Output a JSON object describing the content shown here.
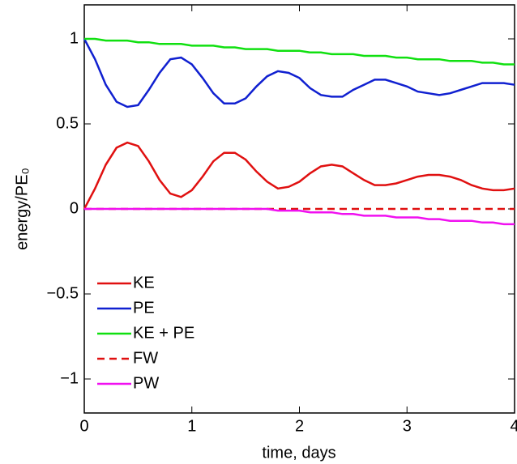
{
  "chart_data": {
    "type": "line",
    "xlabel": "time, days",
    "ylabel": "energy/PE₀",
    "x": [
      0,
      0.1,
      0.2,
      0.3,
      0.4,
      0.5,
      0.6,
      0.7,
      0.8,
      0.9,
      1.0,
      1.1,
      1.2,
      1.3,
      1.4,
      1.5,
      1.6,
      1.7,
      1.8,
      1.9,
      2.0,
      2.1,
      2.2,
      2.3,
      2.4,
      2.5,
      2.6,
      2.7,
      2.8,
      2.9,
      3.0,
      3.1,
      3.2,
      3.3,
      3.4,
      3.5,
      3.6,
      3.7,
      3.8,
      3.9,
      4.0
    ],
    "series": [
      {
        "name": "KE",
        "color": "#e01010",
        "linestyle": "solid",
        "values": [
          0,
          0.12,
          0.26,
          0.36,
          0.39,
          0.37,
          0.28,
          0.17,
          0.09,
          0.07,
          0.11,
          0.19,
          0.28,
          0.33,
          0.33,
          0.29,
          0.22,
          0.16,
          0.12,
          0.13,
          0.16,
          0.21,
          0.25,
          0.26,
          0.25,
          0.21,
          0.17,
          0.14,
          0.14,
          0.15,
          0.17,
          0.19,
          0.2,
          0.2,
          0.19,
          0.17,
          0.14,
          0.12,
          0.11,
          0.11,
          0.12
        ]
      },
      {
        "name": "PE",
        "color": "#1020d0",
        "linestyle": "solid",
        "values": [
          1.0,
          0.88,
          0.73,
          0.63,
          0.6,
          0.61,
          0.7,
          0.8,
          0.88,
          0.89,
          0.85,
          0.77,
          0.68,
          0.62,
          0.62,
          0.65,
          0.72,
          0.78,
          0.81,
          0.8,
          0.77,
          0.71,
          0.67,
          0.66,
          0.66,
          0.7,
          0.73,
          0.76,
          0.76,
          0.74,
          0.72,
          0.69,
          0.68,
          0.67,
          0.68,
          0.7,
          0.72,
          0.74,
          0.74,
          0.74,
          0.73
        ]
      },
      {
        "name": "KE + PE",
        "color": "#10e010",
        "linestyle": "solid",
        "values": [
          1.0,
          1.0,
          0.99,
          0.99,
          0.99,
          0.98,
          0.98,
          0.97,
          0.97,
          0.97,
          0.96,
          0.96,
          0.96,
          0.95,
          0.95,
          0.94,
          0.94,
          0.94,
          0.93,
          0.93,
          0.93,
          0.92,
          0.92,
          0.91,
          0.91,
          0.91,
          0.9,
          0.9,
          0.9,
          0.89,
          0.89,
          0.88,
          0.88,
          0.88,
          0.87,
          0.87,
          0.87,
          0.86,
          0.86,
          0.85,
          0.85
        ]
      },
      {
        "name": "FW",
        "color": "#e01010",
        "linestyle": "dashed",
        "values": [
          0,
          0,
          0,
          0,
          0,
          0,
          0,
          0,
          0,
          0,
          0,
          0,
          0,
          0,
          0,
          0,
          0,
          0,
          0,
          0,
          0,
          0,
          0,
          0,
          0,
          0,
          0,
          0,
          0,
          0,
          0,
          0,
          0,
          0,
          0,
          0,
          0,
          0,
          0,
          0,
          0
        ]
      },
      {
        "name": "PW",
        "color": "#f010f0",
        "linestyle": "solid",
        "values": [
          0,
          0,
          0,
          0,
          0,
          0,
          0,
          0,
          0,
          0,
          0,
          0,
          0,
          0,
          0,
          0,
          0,
          0,
          -0.01,
          -0.01,
          -0.01,
          -0.02,
          -0.02,
          -0.02,
          -0.03,
          -0.03,
          -0.04,
          -0.04,
          -0.04,
          -0.05,
          -0.05,
          -0.05,
          -0.06,
          -0.06,
          -0.07,
          -0.07,
          -0.07,
          -0.08,
          -0.08,
          -0.09,
          -0.09
        ]
      }
    ],
    "xlim": [
      0,
      4
    ],
    "xticks": [
      0,
      1,
      2,
      3,
      4
    ],
    "ylim": [
      -1.2,
      1.2
    ],
    "yticks": [
      {
        "value": -1,
        "label": "−1"
      },
      {
        "value": -0.5,
        "label": "−0.5"
      },
      0,
      0.5,
      1
    ],
    "legend": "lower-left"
  }
}
